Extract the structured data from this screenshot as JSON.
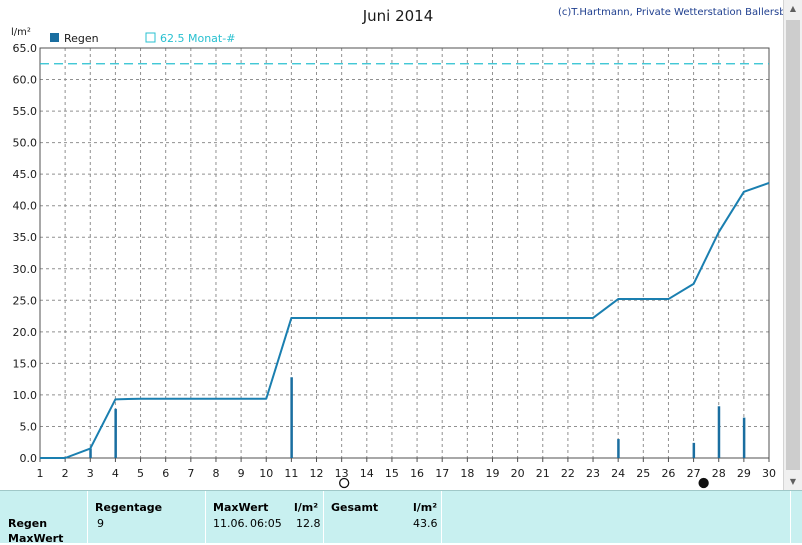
{
  "chart_data": {
    "type": "bar+line",
    "title": "Juni 2014",
    "copyright": "(c)T.Hartmann, Private Wetterstation Ballersbach",
    "ylabel": "l/m²",
    "ylim": [
      0,
      65
    ],
    "yticks": [
      "0.0",
      "5.0",
      "10.0",
      "15.0",
      "20.0",
      "25.0",
      "30.0",
      "35.0",
      "40.0",
      "45.0",
      "50.0",
      "55.0",
      "60.0",
      "65.0"
    ],
    "xlim": [
      1,
      30
    ],
    "xticks": [
      "1",
      "2",
      "3",
      "4",
      "5",
      "6",
      "7",
      "8",
      "9",
      "10",
      "11",
      "12",
      "13",
      "14",
      "15",
      "16",
      "17",
      "18",
      "19",
      "20",
      "21",
      "22",
      "23",
      "24",
      "25",
      "26",
      "27",
      "28",
      "29",
      "30"
    ],
    "grid": true,
    "legend": [
      {
        "label": "Regen",
        "color": "#1a6ea0"
      },
      {
        "label": "62.5 Monat-#",
        "color": "#29c0d0"
      }
    ],
    "daily_rain": {
      "name": "Regen",
      "x": [
        3,
        4,
        11,
        24,
        27,
        28,
        29
      ],
      "values": [
        1.5,
        7.8,
        12.8,
        3.0,
        2.4,
        8.2,
        6.4
      ]
    },
    "cumulative": {
      "x": [
        1,
        2,
        3,
        4,
        5,
        6,
        7,
        8,
        9,
        10,
        11,
        12,
        13,
        14,
        15,
        16,
        17,
        18,
        19,
        20,
        21,
        22,
        23,
        24,
        25,
        26,
        27,
        28,
        29,
        30
      ],
      "values": [
        0,
        0,
        1.5,
        9.3,
        9.4,
        9.4,
        9.4,
        9.4,
        9.4,
        9.4,
        22.2,
        22.2,
        22.2,
        22.2,
        22.2,
        22.2,
        22.2,
        22.2,
        22.2,
        22.2,
        22.2,
        22.2,
        22.2,
        25.2,
        25.2,
        25.2,
        27.6,
        35.8,
        42.2,
        43.6
      ]
    },
    "reference_line": {
      "label": "62.5 Monat-#",
      "value": 62.5,
      "color": "#29c0d0"
    },
    "moon_markers": [
      {
        "x": 13.1,
        "phase": "full-moon"
      },
      {
        "x": 27.4,
        "phase": "new-moon"
      }
    ]
  },
  "summary": {
    "row_labels": [
      "Regen",
      "MaxWert"
    ],
    "regentage_header": "Regentage",
    "regentage_value": "9",
    "maxwert_header": "MaxWert",
    "maxwert_unit": "l/m²",
    "maxwert_date": "11.06.",
    "maxwert_time": "06:05",
    "maxwert_value": "12.8",
    "gesamt_header": "Gesamt",
    "gesamt_unit": "l/m²",
    "gesamt_value": "43.6"
  },
  "colors": {
    "bar": "#1a6ea0",
    "line": "#1a7fb0",
    "reference": "#29c0d0",
    "grid": "#909090"
  }
}
